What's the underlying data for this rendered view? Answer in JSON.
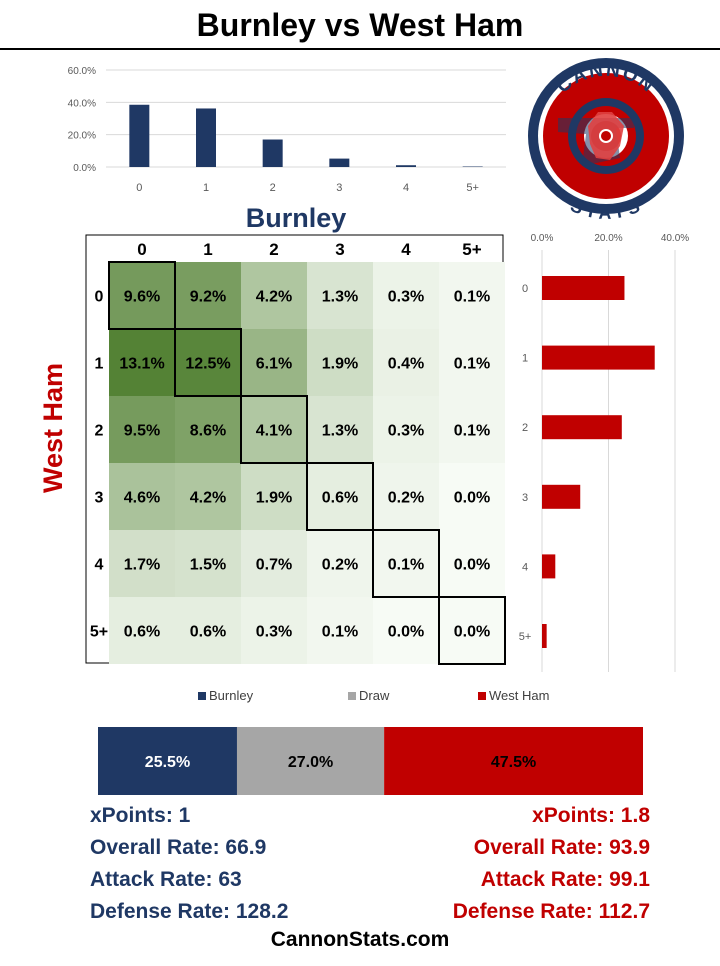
{
  "title": "Burnley vs West Ham",
  "colors": {
    "home": "#1f3864",
    "away": "#c00000",
    "draw": "#a6a6a6"
  },
  "logo": {
    "text_top": "CANNON",
    "text_bottom": "STATS",
    "icon": "cannon-logo-icon"
  },
  "chart_data": [
    {
      "type": "bar",
      "orientation": "vertical",
      "title": "Burnley",
      "categories": [
        "0",
        "1",
        "2",
        "3",
        "4",
        "5+"
      ],
      "values": [
        38.5,
        36.2,
        17.0,
        5.2,
        1.1,
        0.3
      ],
      "ylim": [
        0,
        60
      ],
      "yticks": [
        "0.0%",
        "20.0%",
        "40.0%",
        "60.0%"
      ],
      "grid": true
    },
    {
      "type": "bar",
      "orientation": "horizontal",
      "categories": [
        "0",
        "1",
        "2",
        "3",
        "4",
        "5+"
      ],
      "values": [
        24.8,
        33.9,
        24.0,
        11.5,
        4.0,
        1.4
      ],
      "xlim": [
        0,
        40
      ],
      "xticks": [
        "0.0%",
        "20.0%",
        "40.0%"
      ],
      "grid": true
    },
    {
      "type": "heatmap",
      "xlabel": "Burnley",
      "ylabel": "West Ham",
      "x_categories": [
        "0",
        "1",
        "2",
        "3",
        "4",
        "5+"
      ],
      "y_categories": [
        "0",
        "1",
        "2",
        "3",
        "4",
        "5+"
      ],
      "values": [
        [
          "9.6%",
          "9.2%",
          "4.2%",
          "1.3%",
          "0.3%",
          "0.1%"
        ],
        [
          "13.1%",
          "12.5%",
          "6.1%",
          "1.9%",
          "0.4%",
          "0.1%"
        ],
        [
          "9.5%",
          "8.6%",
          "4.1%",
          "1.3%",
          "0.3%",
          "0.1%"
        ],
        [
          "4.6%",
          "4.2%",
          "1.9%",
          "0.6%",
          "0.2%",
          "0.0%"
        ],
        [
          "1.7%",
          "1.5%",
          "0.7%",
          "0.2%",
          "0.1%",
          "0.0%"
        ],
        [
          "0.6%",
          "0.6%",
          "0.3%",
          "0.1%",
          "0.0%",
          "0.0%"
        ]
      ]
    },
    {
      "type": "bar",
      "orientation": "stacked-horizontal",
      "legend": [
        "Burnley",
        "Draw",
        "West Ham"
      ],
      "legend_position": "top",
      "values": [
        25.5,
        27.0,
        47.5
      ],
      "labels": [
        "25.5%",
        "27.0%",
        "47.5%"
      ]
    }
  ],
  "stats": {
    "home": {
      "xpoints": "xPoints: 1",
      "overall": "Overall Rate: 66.9",
      "attack": "Attack Rate: 63",
      "defense": "Defense Rate: 128.2"
    },
    "away": {
      "xpoints": "xPoints: 1.8",
      "overall": "Overall Rate: 93.9",
      "attack": "Attack Rate: 99.1",
      "defense": "Defense Rate: 112.7"
    }
  },
  "footer": "CannonStats.com"
}
